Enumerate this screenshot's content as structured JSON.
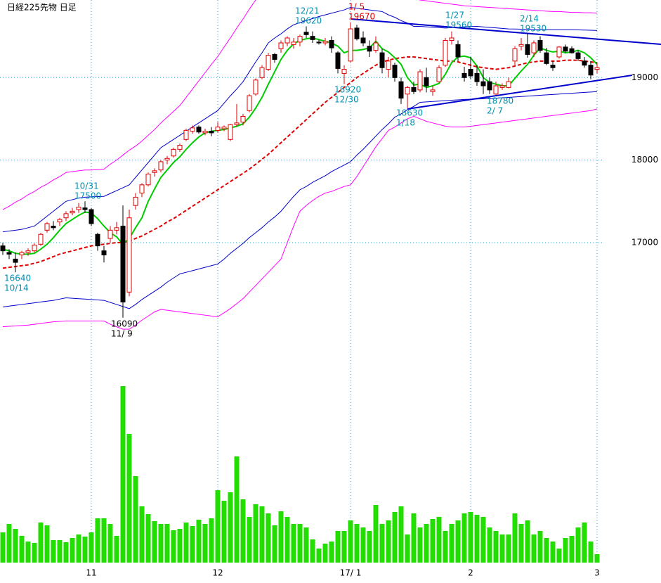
{
  "chart_data": {
    "type": "candlestick",
    "title": "日経225先物 日足",
    "categories": [
      null,
      null,
      null,
      null,
      null,
      null,
      null,
      null,
      null,
      null,
      null,
      null,
      null,
      null,
      "11",
      null,
      null,
      null,
      null,
      null,
      null,
      null,
      null,
      null,
      null,
      null,
      null,
      null,
      null,
      null,
      null,
      null,
      null,
      null,
      "12",
      null,
      null,
      null,
      null,
      null,
      null,
      null,
      null,
      null,
      null,
      null,
      null,
      null,
      null,
      null,
      null,
      null,
      null,
      null,
      null,
      "17/ 1",
      null,
      null,
      null,
      null,
      null,
      null,
      null,
      null,
      null,
      null,
      null,
      null,
      null,
      null,
      null,
      null,
      null,
      null,
      "2",
      null,
      null,
      null,
      null,
      null,
      null,
      null,
      null,
      null,
      null,
      null,
      null,
      null,
      null,
      null,
      null,
      null,
      null,
      null,
      "3"
    ],
    "open": [
      16960,
      16880,
      16800,
      16850,
      16880,
      16900,
      16980,
      17150,
      17200,
      17250,
      17300,
      17360,
      17400,
      17420,
      17400,
      17100,
      16900,
      17050,
      17150,
      17200,
      16400,
      17450,
      17600,
      17700,
      17850,
      17880,
      18000,
      18050,
      18130,
      18250,
      18350,
      18400,
      18330,
      18350,
      18360,
      18380,
      18250,
      18430,
      18460,
      18600,
      18800,
      19000,
      19100,
      19280,
      19350,
      19420,
      19400,
      19430,
      19550,
      19500,
      19430,
      19420,
      19450,
      19300,
      19050,
      19200,
      19600,
      19480,
      19380,
      19330,
      19300,
      19100,
      19150,
      18950,
      18800,
      18880,
      18850,
      19000,
      18830,
      18950,
      19150,
      19450,
      19400,
      19050,
      19100,
      19050,
      18950,
      18950,
      18800,
      18880,
      18880,
      19200,
      19380,
      19400,
      19300,
      19450,
      19300,
      19150,
      19250,
      19370,
      19350,
      19300,
      19200,
      19150,
      19100
    ],
    "high": [
      17000,
      16920,
      16880,
      16900,
      16930,
      16990,
      17120,
      17250,
      17260,
      17300,
      17380,
      17420,
      17480,
      17500,
      17420,
      17120,
      16960,
      17200,
      17250,
      17450,
      17400,
      17600,
      17720,
      17850,
      17900,
      18000,
      18050,
      18150,
      18200,
      18380,
      18420,
      18420,
      18380,
      18400,
      18460,
      18420,
      18440,
      18680,
      18560,
      18800,
      18990,
      19150,
      19300,
      19300,
      19450,
      19500,
      19480,
      19520,
      19620,
      19560,
      19460,
      19480,
      19500,
      19320,
      19150,
      19670,
      19640,
      19560,
      19450,
      19500,
      19350,
      19250,
      19180,
      19000,
      18900,
      18950,
      19100,
      19120,
      18900,
      19150,
      19480,
      19560,
      19450,
      19130,
      19250,
      19150,
      19100,
      19000,
      18950,
      18930,
      19000,
      19380,
      19480,
      19530,
      19450,
      19500,
      19360,
      19200,
      19380,
      19400,
      19380,
      19330,
      19250,
      19200,
      19180
    ],
    "low": [
      16850,
      16800,
      16640,
      16800,
      16840,
      16880,
      16960,
      17120,
      17150,
      17200,
      17260,
      17330,
      17360,
      17360,
      17200,
      16900,
      16760,
      17000,
      17100,
      16090,
      16350,
      17400,
      17550,
      17680,
      17800,
      17850,
      17950,
      18030,
      18100,
      18230,
      18320,
      18320,
      18300,
      18290,
      18330,
      18350,
      18230,
      18400,
      18420,
      18580,
      18780,
      18980,
      19080,
      19180,
      19300,
      19380,
      19350,
      19380,
      19480,
      19420,
      19400,
      19390,
      19300,
      19050,
      18920,
      19180,
      19450,
      19380,
      19250,
      19300,
      19050,
      19000,
      18950,
      18680,
      18630,
      18800,
      18820,
      18820,
      18780,
      18940,
      19130,
      19400,
      19200,
      18950,
      18980,
      18900,
      18800,
      18800,
      18780,
      18850,
      18870,
      19150,
      19330,
      19240,
      19250,
      19300,
      19150,
      19080,
      19230,
      19300,
      19290,
      19200,
      19120,
      18980,
      19050
    ],
    "close": [
      16900,
      16860,
      16760,
      16880,
      16900,
      16970,
      17100,
      17230,
      17180,
      17280,
      17350,
      17380,
      17430,
      17400,
      17230,
      16960,
      16850,
      17150,
      17180,
      16280,
      17300,
      17550,
      17700,
      17830,
      17870,
      17980,
      18020,
      18130,
      18180,
      18360,
      18390,
      18340,
      18350,
      18330,
      18400,
      18400,
      18430,
      18450,
      18530,
      18780,
      18970,
      19120,
      19270,
      19220,
      19420,
      19480,
      19430,
      19500,
      19520,
      19460,
      19420,
      19440,
      19360,
      19110,
      19100,
      19590,
      19470,
      19420,
      19320,
      19420,
      19120,
      19200,
      19000,
      18750,
      18880,
      18830,
      19070,
      18900,
      18850,
      19120,
      19450,
      19480,
      19250,
      19000,
      19020,
      18950,
      18900,
      18850,
      18900,
      18900,
      18950,
      19350,
      19400,
      19280,
      19420,
      19330,
      19170,
      19120,
      19370,
      19320,
      19300,
      19230,
      19150,
      19030,
      19120
    ],
    "up_color": "#e00000",
    "down_color": "#000000",
    "lines": [
      {
        "color": "#ff00ff",
        "width": 1,
        "values": [
          17400,
          17440,
          17490,
          17530,
          17580,
          17620,
          17670,
          17710,
          17760,
          17800,
          17850,
          17860,
          17870,
          17880,
          17880,
          17885,
          17890,
          17950,
          18000,
          18060,
          18120,
          18170,
          18230,
          18300,
          18370,
          18450,
          18520,
          18590,
          18660,
          18760,
          18860,
          18960,
          19060,
          19160,
          19255,
          19370,
          19480,
          19600,
          19710,
          19830,
          19940,
          19980,
          20020,
          20060,
          20100,
          20150,
          20160,
          20170,
          20180,
          20190,
          20200,
          20200,
          20200,
          20200,
          20200,
          20200,
          20180,
          20160,
          20130,
          20100,
          20080,
          20060,
          20050,
          20020,
          19990,
          19960,
          19940,
          19930,
          19920,
          19910,
          19900,
          19890,
          19880,
          19870,
          19865,
          19860,
          19855,
          19850,
          19845,
          19840,
          19835,
          19830,
          19825,
          19820,
          19815,
          19810,
          19805,
          19800,
          19800,
          19795,
          19790,
          19790,
          19785,
          19785,
          19780
        ]
      },
      {
        "color": "#0000cc",
        "width": 1,
        "values": [
          17130,
          17140,
          17150,
          17160,
          17180,
          17200,
          17260,
          17320,
          17380,
          17440,
          17500,
          17520,
          17540,
          17550,
          17555,
          17558,
          17560,
          17595,
          17630,
          17665,
          17700,
          17790,
          17880,
          17970,
          18060,
          18150,
          18200,
          18250,
          18300,
          18350,
          18400,
          18450,
          18500,
          18550,
          18600,
          18690,
          18780,
          18860,
          18950,
          19070,
          19190,
          19300,
          19420,
          19480,
          19530,
          19590,
          19640,
          19665,
          19690,
          19715,
          19740,
          19760,
          19780,
          19800,
          19820,
          19850,
          19840,
          19830,
          19820,
          19810,
          19800,
          19760,
          19730,
          19690,
          19660,
          19620,
          19620,
          19615,
          19610,
          19605,
          19600,
          19605,
          19610,
          19615,
          19618,
          19620,
          19614,
          19608,
          19602,
          19596,
          19590,
          19588,
          19586,
          19584,
          19582,
          19580,
          19580,
          19580,
          19580,
          19580,
          19580,
          19578,
          19576,
          19574,
          19570
        ]
      },
      {
        "color": "#e00000",
        "width": 2,
        "dash": true,
        "values": [
          16690,
          16700,
          16710,
          16720,
          16730,
          16750,
          16770,
          16800,
          16830,
          16860,
          16880,
          16900,
          16920,
          16940,
          16960,
          16970,
          16980,
          16990,
          17000,
          17000,
          17020,
          17050,
          17080,
          17120,
          17160,
          17200,
          17250,
          17290,
          17340,
          17390,
          17440,
          17490,
          17540,
          17590,
          17640,
          17690,
          17740,
          17790,
          17840,
          17890,
          17950,
          18010,
          18070,
          18140,
          18210,
          18280,
          18350,
          18420,
          18490,
          18560,
          18630,
          18700,
          18760,
          18820,
          18880,
          18940,
          19000,
          19050,
          19100,
          19150,
          19190,
          19210,
          19230,
          19240,
          19250,
          19250,
          19240,
          19230,
          19220,
          19210,
          19200,
          19200,
          19190,
          19170,
          19150,
          19130,
          19120,
          19110,
          19100,
          19110,
          19120,
          19140,
          19160,
          19180,
          19190,
          19200,
          19200,
          19200,
          19200,
          19210,
          19210,
          19210,
          19200,
          19190,
          19180
        ]
      },
      {
        "color": "#0000cc",
        "width": 1,
        "values": [
          16220,
          16230,
          16240,
          16250,
          16260,
          16270,
          16280,
          16290,
          16300,
          16315,
          16330,
          16325,
          16320,
          16315,
          16310,
          16305,
          16300,
          16275,
          16250,
          16225,
          16200,
          16250,
          16310,
          16360,
          16410,
          16460,
          16520,
          16570,
          16620,
          16640,
          16660,
          16680,
          16700,
          16720,
          16740,
          16800,
          16870,
          16930,
          16990,
          17060,
          17120,
          17180,
          17250,
          17310,
          17380,
          17470,
          17560,
          17640,
          17680,
          17730,
          17770,
          17810,
          17860,
          17900,
          17940,
          17980,
          18060,
          18130,
          18210,
          18290,
          18370,
          18440,
          18520,
          18560,
          18610,
          18650,
          18700,
          18705,
          18710,
          18715,
          18720,
          18725,
          18730,
          18735,
          18737,
          18740,
          18742,
          18745,
          18750,
          18755,
          18760,
          18765,
          18770,
          18775,
          18780,
          18785,
          18790,
          18795,
          18800,
          18805,
          18810,
          18815,
          18820,
          18825,
          18830
        ]
      },
      {
        "color": "#ff00ff",
        "width": 1,
        "values": [
          15980,
          15985,
          15990,
          15995,
          16000,
          16010,
          16020,
          16030,
          16040,
          16045,
          16050,
          16050,
          16050,
          16050,
          16050,
          16050,
          16050,
          16010,
          15980,
          15950,
          15950,
          16000,
          16060,
          16110,
          16160,
          16190,
          16180,
          16170,
          16160,
          16150,
          16140,
          16130,
          16120,
          16110,
          16100,
          16150,
          16200,
          16260,
          16320,
          16400,
          16480,
          16560,
          16640,
          16720,
          16800,
          17000,
          17200,
          17380,
          17450,
          17510,
          17560,
          17600,
          17620,
          17650,
          17680,
          17700,
          17800,
          17920,
          18040,
          18160,
          18260,
          18360,
          18400,
          18450,
          18500,
          18530,
          18500,
          18470,
          18450,
          18430,
          18410,
          18400,
          18400,
          18400,
          18410,
          18420,
          18430,
          18440,
          18450,
          18460,
          18470,
          18480,
          18490,
          18500,
          18510,
          18520,
          18530,
          18540,
          18550,
          18560,
          18570,
          18580,
          18590,
          18600,
          18620
        ]
      },
      {
        "color": "#00cc00",
        "width": 2,
        "values": [
          16920,
          16900,
          16870,
          16860,
          16860,
          16870,
          16920,
          16980,
          17060,
          17150,
          17230,
          17280,
          17330,
          17370,
          17360,
          17290,
          17200,
          17120,
          17070,
          16980,
          17050,
          17180,
          17300,
          17500,
          17650,
          17790,
          17880,
          17970,
          18040,
          18130,
          18210,
          18280,
          18330,
          18350,
          18360,
          18370,
          18390,
          18410,
          18440,
          18520,
          18630,
          18760,
          18920,
          19070,
          19220,
          19330,
          19410,
          19450,
          19470,
          19480,
          19460,
          19440,
          19420,
          19380,
          19300,
          19330,
          19330,
          19340,
          19360,
          19440,
          19350,
          19310,
          19240,
          19160,
          19000,
          18910,
          18920,
          18880,
          18900,
          18930,
          19040,
          19180,
          19250,
          19260,
          19240,
          19140,
          19000,
          18940,
          18920,
          18900,
          18900,
          18990,
          19080,
          19160,
          19270,
          19360,
          19330,
          19310,
          19320,
          19300,
          19310,
          19330,
          19300,
          19240,
          19160
        ]
      }
    ],
    "volume": {
      "color": "#22dd00",
      "values": [
        43,
        55,
        48,
        38,
        30,
        28,
        57,
        53,
        32,
        32,
        29,
        35,
        40,
        37,
        43,
        63,
        63,
        55,
        38,
        251,
        183,
        123,
        80,
        69,
        59,
        55,
        55,
        46,
        48,
        57,
        52,
        61,
        55,
        63,
        103,
        88,
        100,
        151,
        90,
        65,
        83,
        80,
        70,
        53,
        73,
        65,
        55,
        55,
        50,
        33,
        20,
        27,
        30,
        45,
        45,
        60,
        55,
        50,
        45,
        82,
        55,
        60,
        72,
        80,
        40,
        70,
        50,
        55,
        62,
        65,
        45,
        55,
        60,
        70,
        72,
        68,
        65,
        50,
        45,
        40,
        40,
        70,
        55,
        60,
        40,
        45,
        35,
        30,
        20,
        35,
        38,
        50,
        57,
        30,
        12
      ]
    },
    "ylim": [
      15900,
      19940
    ],
    "yticks": [
      17000,
      18000,
      19000
    ],
    "grid": true,
    "trendline_color": "#0000cc",
    "annotations": [
      {
        "date": "10/14",
        "price": 16640,
        "color": "#0090b0"
      },
      {
        "date": "10/31",
        "price": 17500,
        "color": "#0090b0"
      },
      {
        "date": "11/ 9",
        "price": 16090,
        "color": "#000000"
      },
      {
        "date": "12/21",
        "price": 19620,
        "color": "#0090b0"
      },
      {
        "date": "1/ 5",
        "price": 19670,
        "color": "#e00000"
      },
      {
        "date": "12/30",
        "price": 18920,
        "color": "#0090b0"
      },
      {
        "date": "1/27",
        "price": 19560,
        "color": "#0090b0"
      },
      {
        "date": "2/14",
        "price": 19530,
        "color": "#0090b0"
      },
      {
        "date": "1/18",
        "price": 18630,
        "color": "#0090b0"
      },
      {
        "date": "2/ 7",
        "price": 18780,
        "color": "#0090b0"
      }
    ]
  }
}
